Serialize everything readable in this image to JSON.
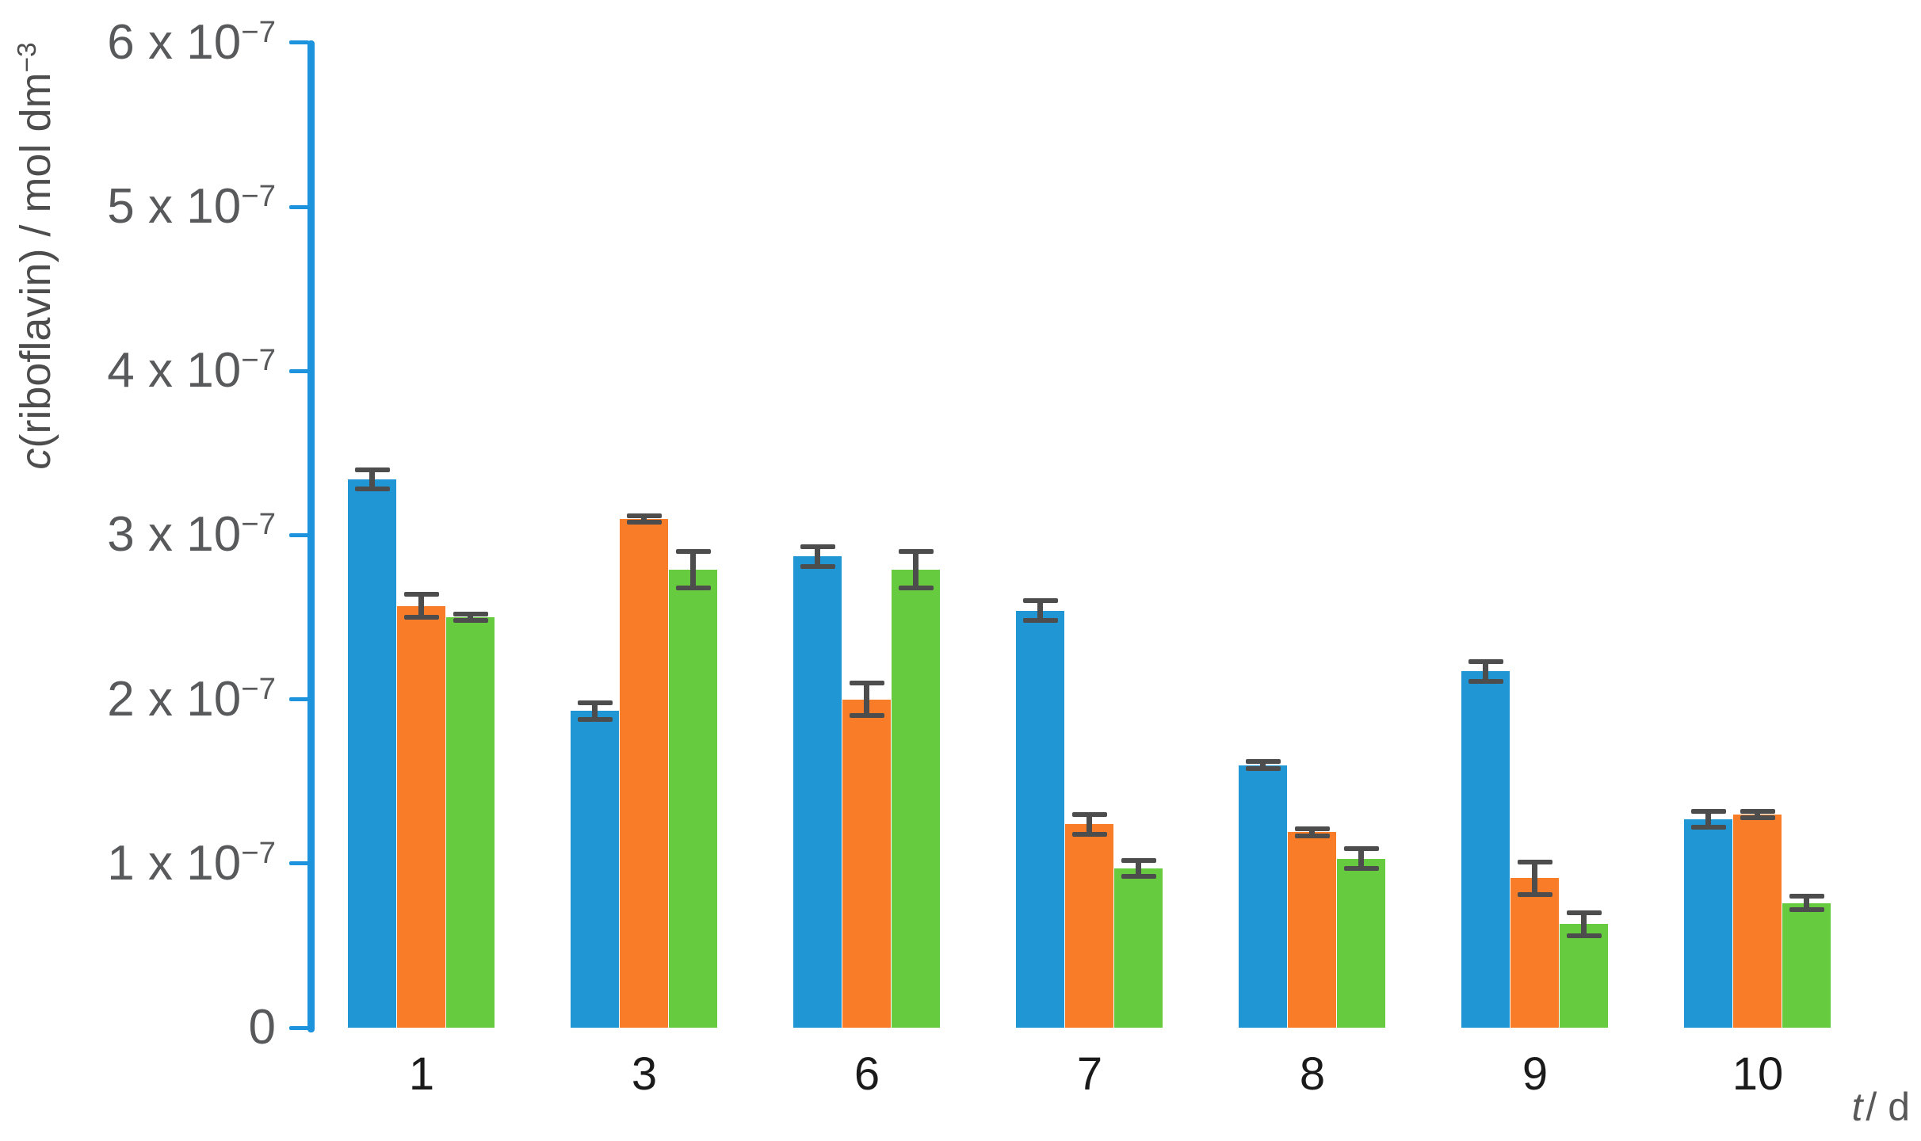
{
  "chart_data": {
    "type": "bar",
    "title": "",
    "categories": [
      "1",
      "3",
      "6",
      "7",
      "8",
      "9",
      "10"
    ],
    "series": [
      {
        "color_name": "blue",
        "color": "#2196d5",
        "values": [
          3.34,
          1.93,
          2.87,
          2.54,
          1.6,
          2.17,
          1.27
        ],
        "errors": [
          0.06,
          0.05,
          0.06,
          0.06,
          0.02,
          0.06,
          0.05
        ]
      },
      {
        "color_name": "orange",
        "color": "#f97c28",
        "values": [
          2.57,
          3.1,
          2.0,
          1.24,
          1.19,
          0.91,
          1.3
        ],
        "errors": [
          0.07,
          0.02,
          0.1,
          0.06,
          0.02,
          0.1,
          0.02
        ]
      },
      {
        "color_name": "green",
        "color": "#67cb40",
        "values": [
          2.5,
          2.79,
          2.79,
          0.97,
          1.03,
          0.63,
          0.76
        ],
        "errors": [
          0.02,
          0.11,
          0.11,
          0.05,
          0.06,
          0.07,
          0.04
        ]
      }
    ],
    "value_scale_note": "bar values and errors are in units of 1e-7 mol dm-3",
    "ylabel": {
      "italic": "c",
      "text": "(riboflavin) / mol dm",
      "sup": "−3"
    },
    "xlabel": {
      "italic": "t",
      "rest": "/ d"
    },
    "yaxis": {
      "tick_mantissas": [
        "0",
        "1",
        "2",
        "3",
        "4",
        "5",
        "6"
      ],
      "tick_base": " x 10",
      "tick_sup": "−7",
      "min": 0,
      "max": 6
    },
    "grid": false,
    "legend": false,
    "colors": {
      "axis": "#1d93dd",
      "error_bar": "#4d4d4d",
      "y_tick_label": "#58595b",
      "x_tick_label": "#1a1a1a",
      "axis_title": "#4d4d4d"
    }
  }
}
